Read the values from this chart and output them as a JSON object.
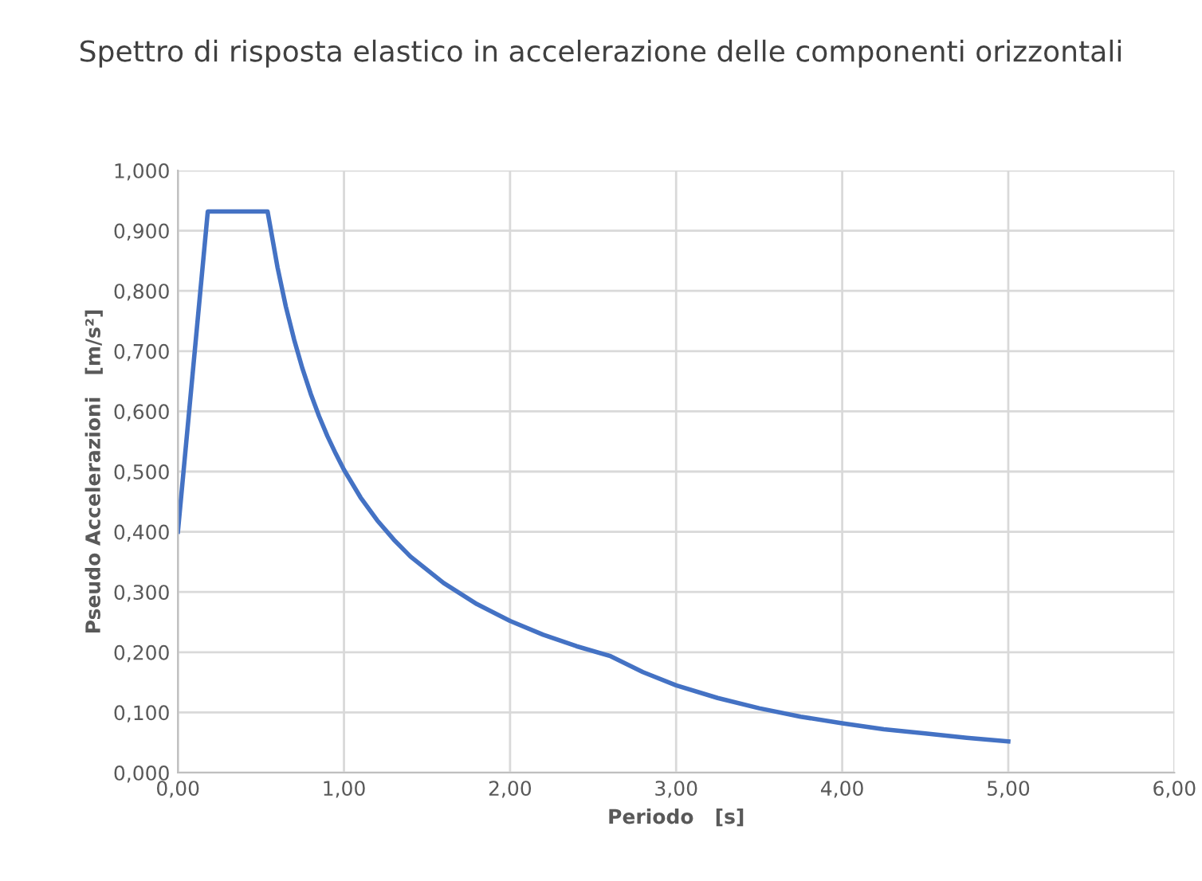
{
  "chart_data": {
    "type": "line",
    "title": "Spettro di risposta elastico in accelerazione delle componenti orizzontali",
    "xlabel": "Periodo   [s]",
    "ylabel": "Pseudo Accelerazioni   [m/s²]",
    "x": [
      0,
      0.18,
      0.54,
      0.6,
      0.65,
      0.7,
      0.75,
      0.8,
      0.85,
      0.9,
      0.95,
      1.0,
      1.1,
      1.2,
      1.3,
      1.4,
      1.6,
      1.8,
      2.0,
      2.2,
      2.4,
      2.6,
      2.8,
      3.0,
      3.25,
      3.5,
      3.75,
      4.0,
      4.25,
      4.5,
      4.75,
      5.0
    ],
    "series": [
      {
        "color": "#4472c4",
        "values": [
          0.4,
          0.932,
          0.932,
          0.839,
          0.774,
          0.719,
          0.671,
          0.629,
          0.592,
          0.559,
          0.53,
          0.503,
          0.457,
          0.419,
          0.387,
          0.359,
          0.315,
          0.28,
          0.252,
          0.229,
          0.21,
          0.194,
          0.167,
          0.145,
          0.124,
          0.107,
          0.093,
          0.082,
          0.072,
          0.065,
          0.058,
          0.052
        ]
      }
    ],
    "xlim": [
      0,
      6
    ],
    "ylim": [
      0,
      1
    ],
    "xticks": [
      {
        "value": 0,
        "label": "0,00"
      },
      {
        "value": 1,
        "label": "1,00"
      },
      {
        "value": 2,
        "label": "2,00"
      },
      {
        "value": 3,
        "label": "3,00"
      },
      {
        "value": 4,
        "label": "4,00"
      },
      {
        "value": 5,
        "label": "5,00"
      },
      {
        "value": 6,
        "label": "6,00"
      }
    ],
    "yticks": [
      {
        "value": 0,
        "label": "0,000"
      },
      {
        "value": 0.1,
        "label": "0,100"
      },
      {
        "value": 0.2,
        "label": "0,200"
      },
      {
        "value": 0.3,
        "label": "0,300"
      },
      {
        "value": 0.4,
        "label": "0,400"
      },
      {
        "value": 0.5,
        "label": "0,500"
      },
      {
        "value": 0.6,
        "label": "0,600"
      },
      {
        "value": 0.7,
        "label": "0,700"
      },
      {
        "value": 0.8,
        "label": "0,800"
      },
      {
        "value": 0.9,
        "label": "0,900"
      },
      {
        "value": 1,
        "label": "1,000"
      }
    ],
    "grid": true,
    "marker": "none",
    "line_style": "solid"
  }
}
